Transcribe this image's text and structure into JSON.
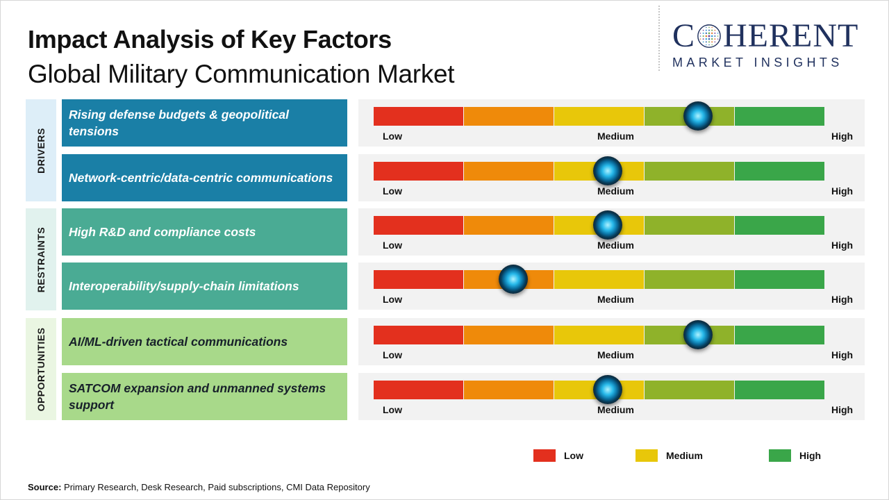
{
  "header": {
    "title": "Impact Analysis of Key Factors",
    "subtitle": "Global Military Communication Market"
  },
  "logo": {
    "brand_left": "C",
    "brand_right": "HERENT",
    "tagline": "MARKET INSIGHTS",
    "mark_icon": "globe-dots-icon"
  },
  "scale": {
    "low_label": "Low",
    "medium_label": "Medium",
    "high_label": "High",
    "colors": [
      "#e3301e",
      "#ef8a0a",
      "#e8c70a",
      "#8fb22a",
      "#3aa649"
    ]
  },
  "categories": [
    {
      "label": "DRIVERS",
      "bg": "#ddeef8"
    },
    {
      "label": "RESTRAINTS",
      "bg": "#e1f2ee"
    },
    {
      "label": "OPPORTUNITIES",
      "bg": "#eaf6e2"
    }
  ],
  "chart_data": {
    "type": "bar",
    "scale_levels": [
      "Low",
      "Medium",
      "High"
    ],
    "segment_count": 5,
    "factors": [
      {
        "category": "DRIVERS",
        "label": "Rising defense budgets & geopolitical tensions",
        "impact": 0.72,
        "box_color": "#1a7fa6"
      },
      {
        "category": "DRIVERS",
        "label": "Network-centric/data-centric communications",
        "impact": 0.52,
        "box_color": "#1a7fa6"
      },
      {
        "category": "RESTRAINTS",
        "label": "High R&D and compliance costs",
        "impact": 0.52,
        "box_color": "#4aab94"
      },
      {
        "category": "RESTRAINTS",
        "label": "Interoperability/supply-chain limitations",
        "impact": 0.31,
        "box_color": "#4aab94"
      },
      {
        "category": "OPPORTUNITIES",
        "label": "AI/ML-driven tactical communications",
        "impact": 0.72,
        "box_color": "#a8d98a"
      },
      {
        "category": "OPPORTUNITIES",
        "label": "SATCOM expansion and unmanned systems support",
        "impact": 0.52,
        "box_color": "#a8d98a"
      }
    ],
    "legend": [
      {
        "label": "Low",
        "color": "#e3301e"
      },
      {
        "label": "Medium",
        "color": "#e8c70a"
      },
      {
        "label": "High",
        "color": "#3aa649"
      }
    ]
  },
  "source": {
    "label": "Source:",
    "text": " Primary Research, Desk Research, Paid subscriptions, CMI Data Repository"
  }
}
